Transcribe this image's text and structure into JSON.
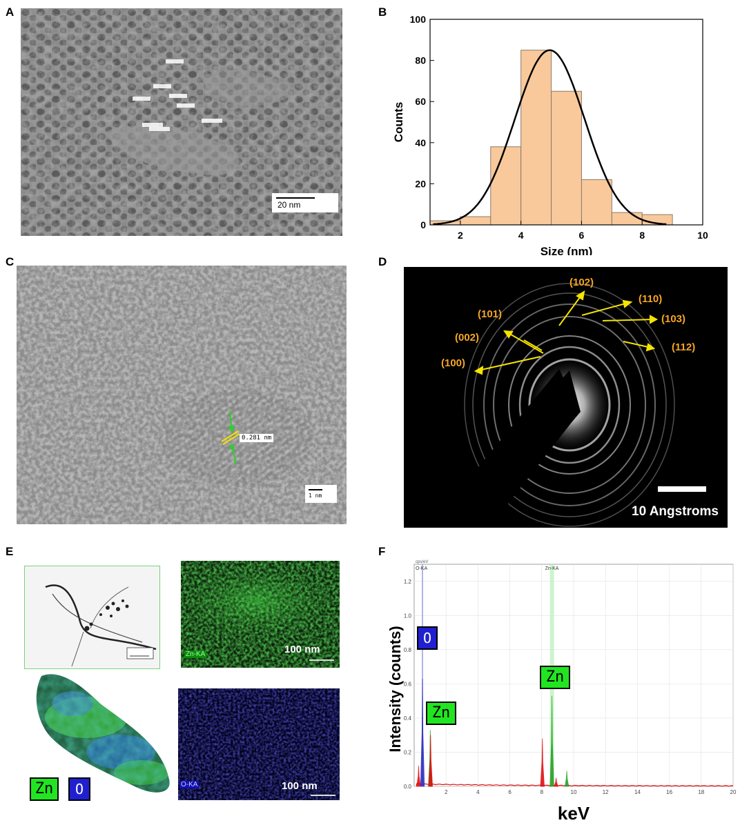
{
  "panels": {
    "A": {
      "label": "A",
      "scale_bar": "20 nm"
    },
    "B": {
      "label": "B"
    },
    "C": {
      "label": "C",
      "lattice_spacing": "0.281 nm",
      "scale_bar": "1 nm"
    },
    "D": {
      "label": "D",
      "rings": [
        "(100)",
        "(002)",
        "(101)",
        "(102)",
        "(110)",
        "(103)",
        "(112)"
      ],
      "scale_bar": "10 Angstroms"
    },
    "E": {
      "label": "E",
      "zn_map_label": "Zn-KA",
      "o_map_label": "O-KA",
      "scale_bar": "100 nm",
      "legend_zn": "Zn",
      "legend_o": "O"
    },
    "F": {
      "label": "F"
    }
  },
  "chart_data": [
    {
      "type": "bar",
      "panel": "B",
      "xlabel": "Size (nm)",
      "ylabel": "Counts",
      "xlim": [
        1,
        10
      ],
      "ylim": [
        0,
        100
      ],
      "x_ticks": [
        2,
        4,
        6,
        8,
        10
      ],
      "y_ticks": [
        0,
        20,
        40,
        60,
        80,
        100
      ],
      "bins": [
        {
          "start": 1,
          "end": 2,
          "count": 2
        },
        {
          "start": 2,
          "end": 3,
          "count": 4
        },
        {
          "start": 3,
          "end": 4,
          "count": 38
        },
        {
          "start": 4,
          "end": 5,
          "count": 85
        },
        {
          "start": 5,
          "end": 6,
          "count": 65
        },
        {
          "start": 6,
          "end": 7,
          "count": 22
        },
        {
          "start": 7,
          "end": 8,
          "count": 6
        },
        {
          "start": 8,
          "end": 9,
          "count": 5
        }
      ],
      "fit": {
        "type": "gaussian",
        "mean": 4.95,
        "sigma": 1.15,
        "peak": 85,
        "x_range": [
          1.1,
          8.8
        ]
      },
      "colors": {
        "bar": "#f9c99b",
        "bar_edge": "#8a7a6a",
        "fit": "#000000"
      }
    },
    {
      "type": "line",
      "panel": "F",
      "xlabel": "keV",
      "ylabel": "Intensity (counts)",
      "xlim": [
        0,
        20
      ],
      "ylim": [
        0,
        1.3
      ],
      "x_ticks": [
        2,
        4,
        6,
        8,
        10,
        12,
        14,
        16,
        18,
        20
      ],
      "y_ticks": [
        0.0,
        0.2,
        0.4,
        0.6,
        0.8,
        1.0,
        1.2
      ],
      "top_label": "cps/eV",
      "marker_labels": [
        "O-KA",
        "Zn-KA"
      ],
      "legend_labels": [
        "O",
        "Zn",
        "Zn"
      ],
      "peaks": [
        {
          "x": 0.28,
          "y": 0.12,
          "color": "#e01010"
        },
        {
          "x": 0.52,
          "y": 0.63,
          "color": "#3030c0"
        },
        {
          "x": 1.01,
          "y": 0.33,
          "color": "#2aa02a"
        },
        {
          "x": 1.03,
          "y": 0.3,
          "color": "#e01010"
        },
        {
          "x": 8.04,
          "y": 0.28,
          "color": "#e01010"
        },
        {
          "x": 8.64,
          "y": 0.53,
          "color": "#2aa02a"
        },
        {
          "x": 8.9,
          "y": 0.05,
          "color": "#e01010"
        },
        {
          "x": 9.57,
          "y": 0.09,
          "color": "#2aa02a"
        }
      ],
      "colors": {
        "spectrum": "#e01010",
        "zn_line": "#2aa02a",
        "o_line": "#3030c0"
      }
    }
  ]
}
